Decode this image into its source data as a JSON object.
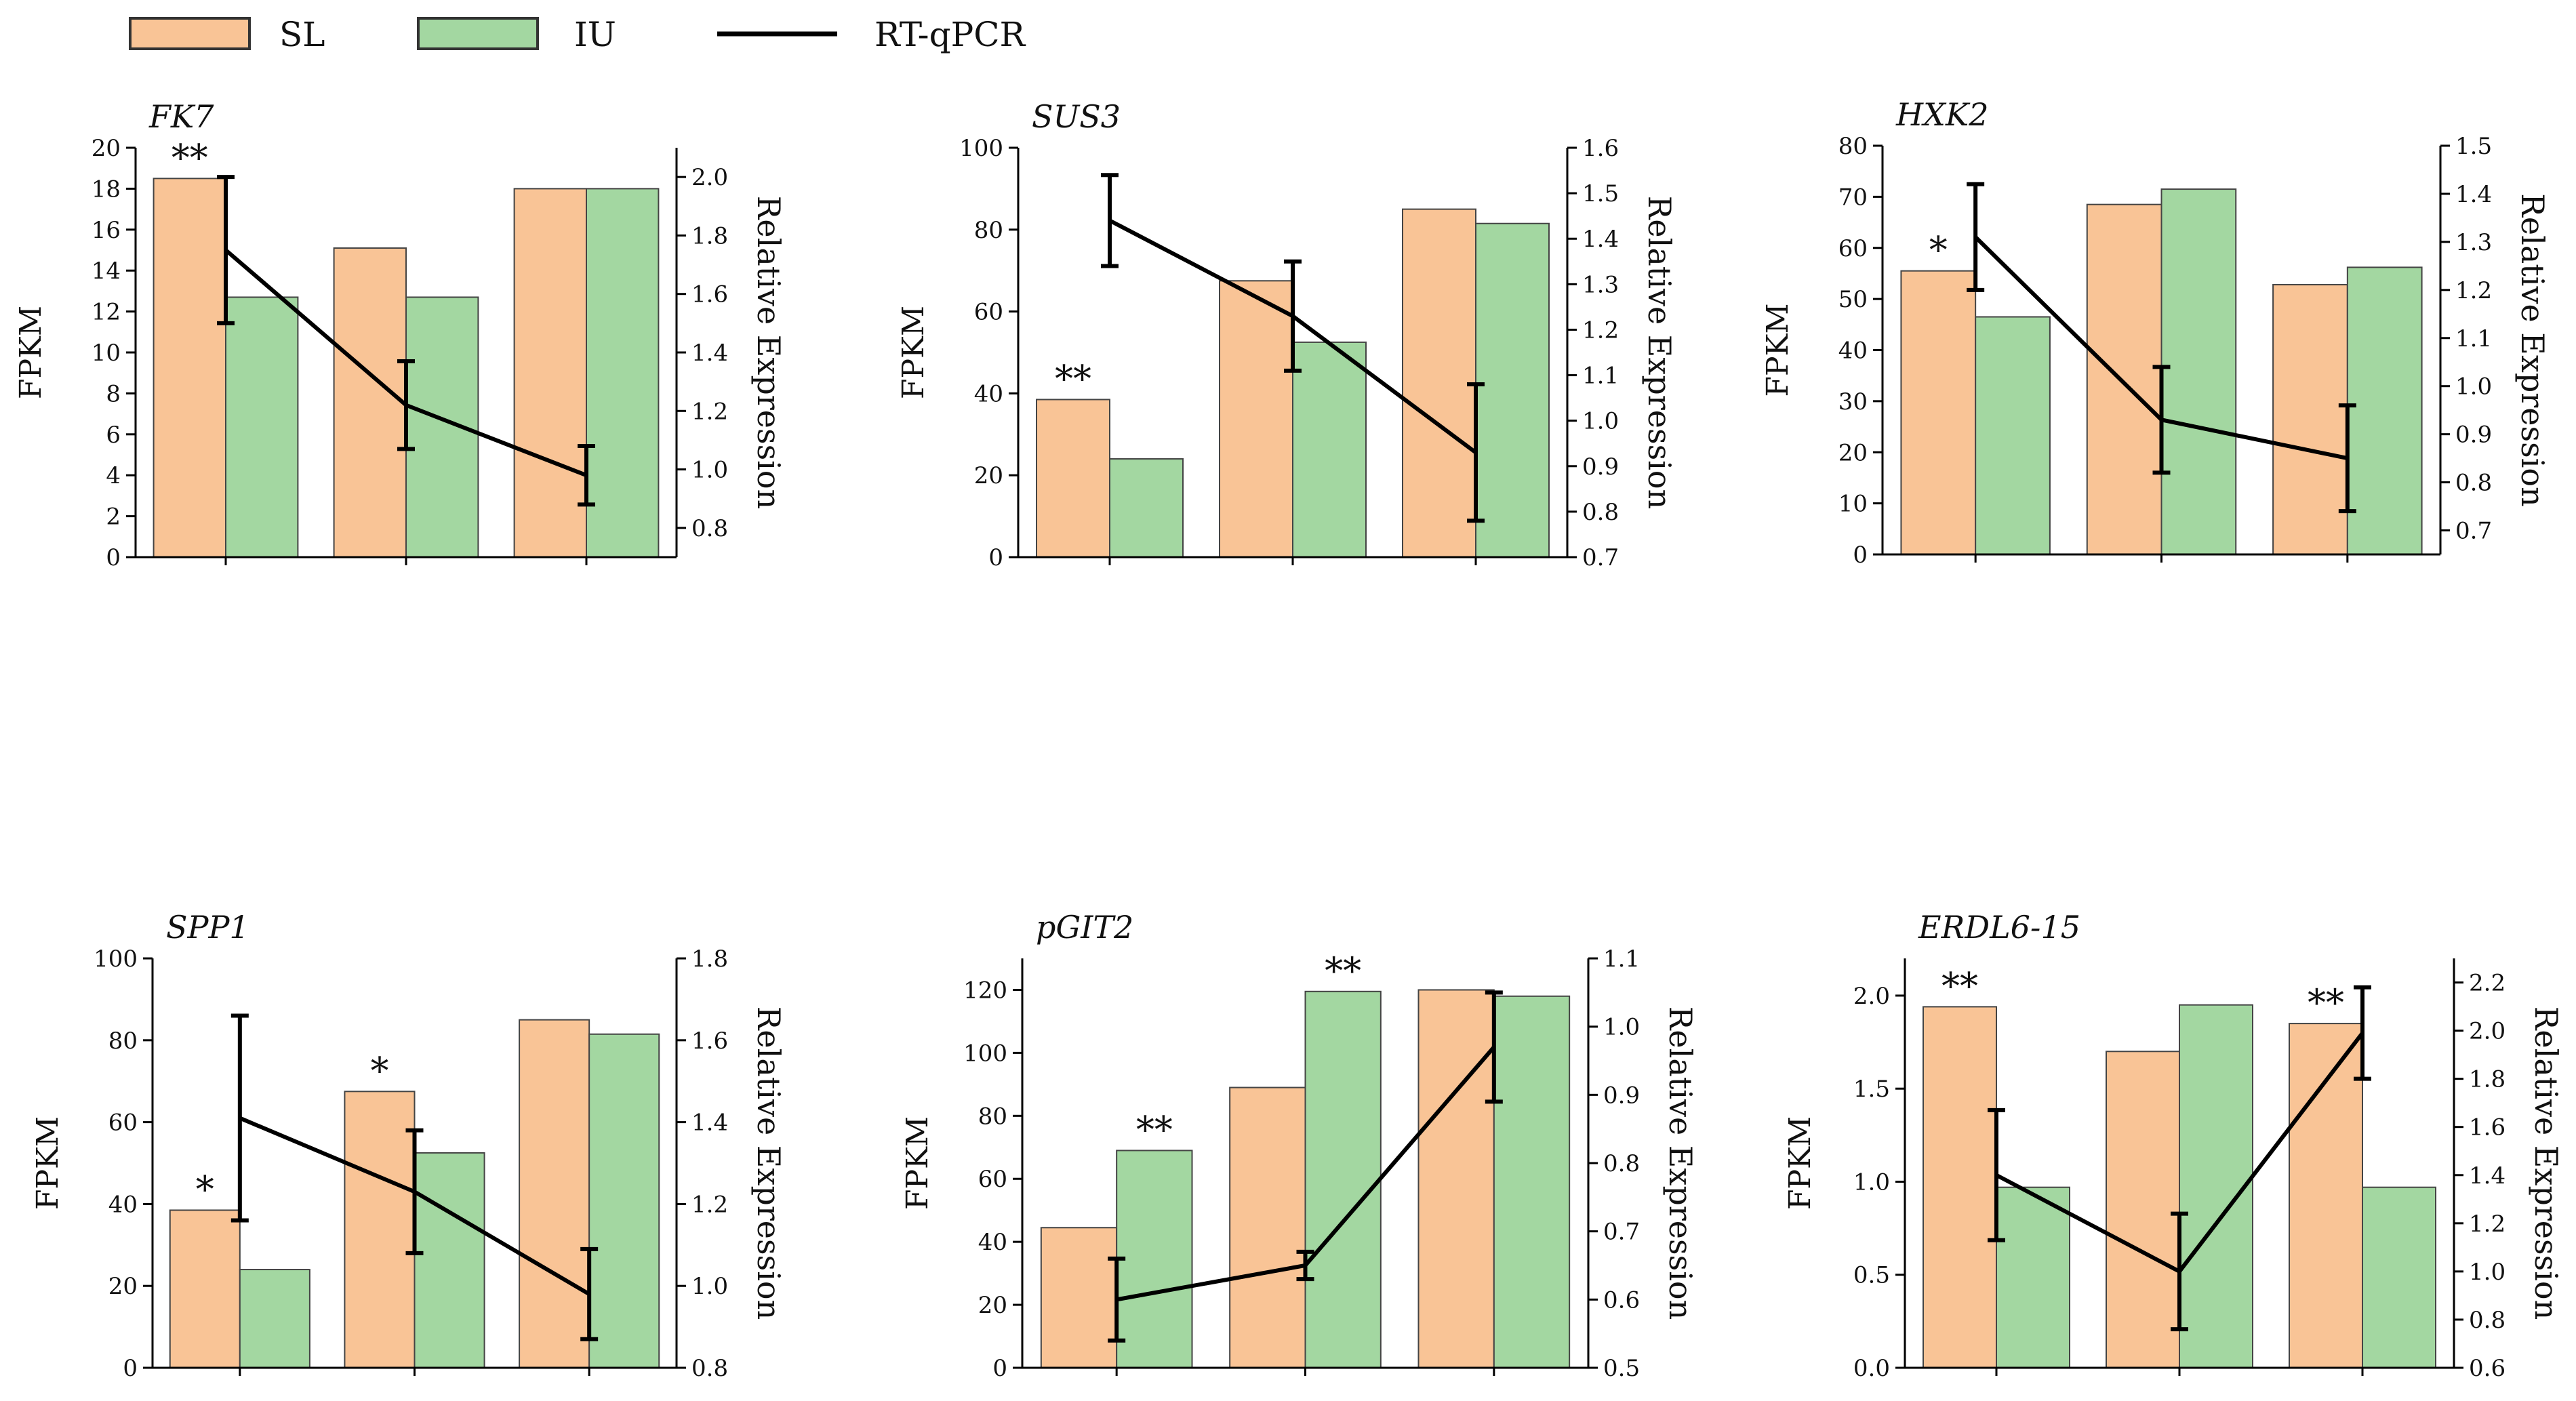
{
  "legend": {
    "sl_label": "SL",
    "iu_label": "IU",
    "line_label": "RT-qPCR"
  },
  "colors": {
    "sl": "#F9C496",
    "iu": "#A3D7A1",
    "line": "#000000",
    "axis": "#000000"
  },
  "chart_data": [
    {
      "type": "bar",
      "title": "FK7",
      "ylabel": "FPKM",
      "y2label": "Relative Expression",
      "ylim": [
        0,
        20
      ],
      "yticks": [
        "0",
        "2",
        "4",
        "6",
        "8",
        "10",
        "12",
        "14",
        "16",
        "18",
        "20"
      ],
      "y2lim": [
        0.7,
        2.1
      ],
      "y2ticks": [
        "0.8",
        "1.0",
        "1.2",
        "1.4",
        "1.6",
        "1.8",
        "2.0"
      ],
      "series": [
        {
          "name": "SL",
          "values": [
            18.5,
            15.1,
            18.0
          ]
        },
        {
          "name": "IU",
          "values": [
            12.7,
            12.7,
            18.0
          ]
        },
        {
          "name": "RT-qPCR",
          "values": [
            1.75,
            1.22,
            0.98
          ],
          "errors": [
            0.25,
            0.15,
            0.1
          ]
        }
      ],
      "annotations": [
        {
          "group": 0,
          "series": "SL",
          "text": "**"
        }
      ]
    },
    {
      "type": "bar",
      "title": "SUS3",
      "ylabel": "FPKM",
      "y2label": "Relative Expression",
      "ylim": [
        0,
        100
      ],
      "yticks": [
        "0",
        "20",
        "40",
        "60",
        "80",
        "100"
      ],
      "y2lim": [
        0.7,
        1.6
      ],
      "y2ticks": [
        "0.7",
        "0.8",
        "0.9",
        "1.0",
        "1.1",
        "1.2",
        "1.3",
        "1.4",
        "1.5",
        "1.6"
      ],
      "series": [
        {
          "name": "SL",
          "values": [
            38.5,
            67.5,
            85.0
          ]
        },
        {
          "name": "IU",
          "values": [
            24.0,
            52.5,
            81.5
          ]
        },
        {
          "name": "RT-qPCR",
          "values": [
            1.44,
            1.23,
            0.93
          ],
          "errors": [
            0.1,
            0.12,
            0.15
          ]
        }
      ],
      "annotations": [
        {
          "group": 0,
          "series": "SL",
          "text": "**"
        }
      ]
    },
    {
      "type": "bar",
      "title": "HXK2",
      "ylabel": "FPKM",
      "y2label": "Relative Expression",
      "ylim": [
        0,
        80
      ],
      "yticks": [
        "0",
        "10",
        "20",
        "30",
        "40",
        "50",
        "60",
        "70",
        "80"
      ],
      "y2lim": [
        0.65,
        1.5
      ],
      "y2ticks": [
        "0.7",
        "0.8",
        "0.9",
        "1.0",
        "1.1",
        "1.2",
        "1.3",
        "1.4",
        "1.5"
      ],
      "series": [
        {
          "name": "SL",
          "values": [
            55.5,
            68.5,
            52.8
          ]
        },
        {
          "name": "IU",
          "values": [
            46.5,
            71.5,
            56.2
          ]
        },
        {
          "name": "RT-qPCR",
          "values": [
            1.31,
            0.93,
            0.85
          ],
          "errors": [
            0.11,
            0.11,
            0.11
          ]
        }
      ],
      "annotations": [
        {
          "group": 0,
          "series": "SL",
          "text": "*"
        }
      ]
    },
    {
      "type": "bar",
      "title": "SPP1",
      "ylabel": "FPKM",
      "y2label": "Relative Expression",
      "ylim": [
        0,
        100
      ],
      "yticks": [
        "0",
        "20",
        "40",
        "60",
        "80",
        "100"
      ],
      "y2lim": [
        0.8,
        1.8
      ],
      "y2ticks": [
        "0.8",
        "1.0",
        "1.2",
        "1.4",
        "1.6",
        "1.8"
      ],
      "series": [
        {
          "name": "SL",
          "values": [
            38.5,
            67.5,
            85.0
          ]
        },
        {
          "name": "IU",
          "values": [
            24.0,
            52.5,
            81.5
          ]
        },
        {
          "name": "RT-qPCR",
          "values": [
            1.41,
            1.23,
            0.98
          ],
          "errors": [
            0.25,
            0.15,
            0.11
          ]
        }
      ],
      "annotations": [
        {
          "group": 0,
          "series": "SL",
          "text": "*"
        },
        {
          "group": 1,
          "series": "SL",
          "text": "*"
        }
      ]
    },
    {
      "type": "bar",
      "title": "pGIT2",
      "ylabel": "FPKM",
      "y2label": "Relative Expression",
      "ylim": [
        0,
        130
      ],
      "yticks": [
        "0",
        "20",
        "40",
        "60",
        "80",
        "100",
        "120"
      ],
      "y2lim": [
        0.5,
        1.1
      ],
      "y2ticks": [
        "0.5",
        "0.6",
        "0.7",
        "0.8",
        "0.9",
        "1.0",
        "1.1"
      ],
      "series": [
        {
          "name": "SL",
          "values": [
            44.5,
            89.0,
            120.0
          ]
        },
        {
          "name": "IU",
          "values": [
            69.0,
            119.5,
            118.0
          ]
        },
        {
          "name": "RT-qPCR",
          "values": [
            0.6,
            0.65,
            0.97
          ],
          "errors": [
            0.06,
            0.02,
            0.08
          ]
        }
      ],
      "annotations": [
        {
          "group": 0,
          "series": "IU",
          "text": "**"
        },
        {
          "group": 1,
          "series": "IU",
          "text": "**"
        }
      ]
    },
    {
      "type": "bar",
      "title": "ERDL6-15",
      "ylabel": "FPKM",
      "y2label": "Relative Expression",
      "ylim": [
        0,
        2.2
      ],
      "yticks": [
        "0.0",
        "0.5",
        "1.0",
        "1.5",
        "2.0"
      ],
      "y2lim": [
        0.6,
        2.3
      ],
      "y2ticks": [
        "0.6",
        "0.8",
        "1.0",
        "1.2",
        "1.4",
        "1.6",
        "1.8",
        "2.0",
        "2.2"
      ],
      "series": [
        {
          "name": "SL",
          "values": [
            1.94,
            1.7,
            1.85
          ]
        },
        {
          "name": "IU",
          "values": [
            0.97,
            1.95,
            0.97
          ]
        },
        {
          "name": "RT-qPCR",
          "values": [
            1.4,
            1.0,
            1.99
          ],
          "errors": [
            0.27,
            0.24,
            0.19
          ]
        }
      ],
      "annotations": [
        {
          "group": 0,
          "series": "SL",
          "text": "**"
        },
        {
          "group": 2,
          "series": "SL",
          "text": "**"
        }
      ]
    }
  ]
}
